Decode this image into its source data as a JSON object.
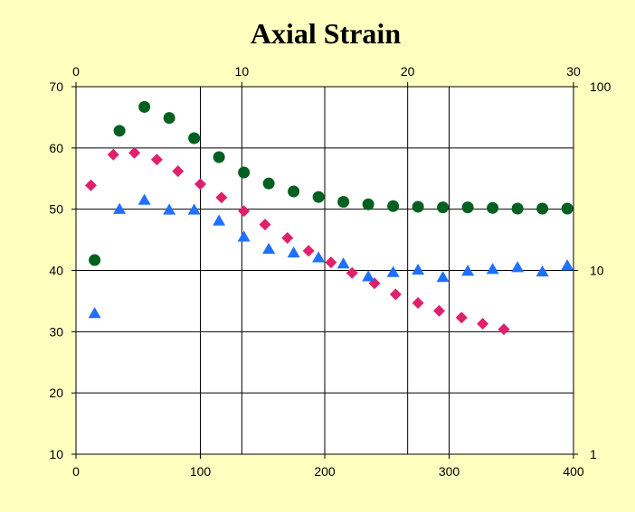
{
  "chart_data": {
    "type": "scatter",
    "title": "Axial Strain",
    "grid": true,
    "legend": "none",
    "axes": {
      "x_bottom": {
        "range": [
          0,
          400
        ],
        "ticks": [
          0,
          100,
          200,
          300,
          400
        ]
      },
      "x_top": {
        "range": [
          0,
          30
        ],
        "ticks": [
          0,
          10,
          20,
          30
        ]
      },
      "y_left": {
        "range": [
          10,
          70
        ],
        "ticks": [
          10,
          20,
          30,
          40,
          50,
          60,
          70
        ]
      },
      "y_right": {
        "scale": "log",
        "range": [
          1,
          100
        ],
        "ticks": [
          1,
          10,
          100
        ]
      }
    },
    "series": [
      {
        "marker": "circle",
        "color": "#006020",
        "x": [
          15,
          35,
          55,
          75,
          95,
          115,
          135,
          155,
          175,
          195,
          215,
          235,
          255,
          275,
          295,
          315,
          335,
          355,
          375,
          395
        ],
        "y": [
          41.7,
          62.8,
          66.7,
          64.9,
          61.6,
          58.5,
          56.0,
          54.2,
          52.9,
          52.0,
          51.2,
          50.8,
          50.5,
          50.4,
          50.3,
          50.3,
          50.2,
          50.1,
          50.1,
          50.1
        ]
      },
      {
        "marker": "diamond",
        "color": "#e0206b",
        "x": [
          12,
          30,
          47,
          65,
          82,
          100,
          117,
          135,
          152,
          170,
          187,
          205,
          222,
          240,
          257,
          275,
          292,
          310,
          327,
          344
        ],
        "y": [
          53.9,
          58.9,
          59.2,
          58.1,
          56.2,
          54.1,
          51.9,
          49.7,
          47.5,
          45.3,
          43.2,
          41.3,
          39.6,
          37.9,
          36.1,
          34.7,
          33.4,
          32.3,
          31.3,
          30.4
        ]
      },
      {
        "marker": "triangle",
        "color": "#2070ff",
        "x": [
          15,
          35,
          55,
          75,
          95,
          115,
          135,
          155,
          175,
          195,
          215,
          235,
          255,
          275,
          295,
          315,
          335,
          355,
          375,
          395
        ],
        "y": [
          33.0,
          50.0,
          51.5,
          49.9,
          49.9,
          48.1,
          45.5,
          43.5,
          42.9,
          42.1,
          41.1,
          39.0,
          39.7,
          40.1,
          38.9,
          39.9,
          40.2,
          40.5,
          39.8,
          40.8
        ]
      }
    ]
  }
}
